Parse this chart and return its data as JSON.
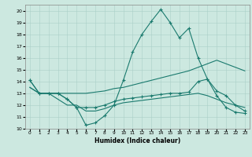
{
  "title": "",
  "xlabel": "Humidex (Indice chaleur)",
  "bg_color": "#cce8e0",
  "line_color": "#1a7a6e",
  "grid_color": "#aacfc8",
  "xlim": [
    -0.5,
    23.5
  ],
  "ylim": [
    10,
    20.5
  ],
  "xticks": [
    0,
    1,
    2,
    3,
    4,
    5,
    6,
    7,
    8,
    9,
    10,
    11,
    12,
    13,
    14,
    15,
    16,
    17,
    18,
    19,
    20,
    21,
    22,
    23
  ],
  "yticks": [
    10,
    11,
    12,
    13,
    14,
    15,
    16,
    17,
    18,
    19,
    20
  ],
  "line1_x": [
    0,
    1,
    2,
    3,
    4,
    5,
    6,
    7,
    8,
    9,
    10,
    11,
    12,
    13,
    14,
    15,
    16,
    17,
    18,
    19,
    20,
    21,
    22,
    23
  ],
  "line1_y": [
    14.1,
    13.0,
    13.0,
    13.0,
    12.5,
    11.8,
    10.3,
    10.5,
    11.1,
    12.0,
    14.1,
    16.5,
    18.0,
    19.1,
    20.1,
    19.0,
    17.7,
    18.5,
    16.0,
    14.2,
    12.8,
    11.8,
    11.4,
    11.3
  ],
  "line2_x": [
    0,
    1,
    2,
    3,
    4,
    5,
    6,
    7,
    8,
    9,
    10,
    11,
    12,
    13,
    14,
    15,
    16,
    17,
    18,
    19,
    20,
    21,
    22,
    23
  ],
  "line2_y": [
    13.5,
    13.0,
    13.0,
    13.0,
    13.0,
    13.0,
    13.0,
    13.1,
    13.2,
    13.4,
    13.5,
    13.7,
    13.9,
    14.1,
    14.3,
    14.5,
    14.7,
    14.9,
    15.2,
    15.5,
    15.8,
    15.5,
    15.2,
    14.9
  ],
  "line3_x": [
    0,
    1,
    2,
    3,
    4,
    5,
    6,
    7,
    8,
    9,
    10,
    11,
    12,
    13,
    14,
    15,
    16,
    17,
    18,
    19,
    20,
    21,
    22,
    23
  ],
  "line3_y": [
    13.5,
    13.0,
    13.0,
    12.5,
    12.0,
    12.0,
    11.5,
    11.5,
    11.7,
    12.0,
    12.2,
    12.3,
    12.4,
    12.5,
    12.6,
    12.7,
    12.8,
    12.9,
    13.0,
    12.8,
    12.5,
    12.2,
    12.0,
    11.8
  ],
  "line4_x": [
    0,
    1,
    2,
    3,
    4,
    5,
    6,
    7,
    8,
    9,
    10,
    11,
    12,
    13,
    14,
    15,
    16,
    17,
    18,
    19,
    20,
    21,
    22,
    23
  ],
  "line4_y": [
    14.1,
    13.0,
    13.0,
    13.0,
    12.5,
    11.8,
    11.8,
    11.8,
    12.0,
    12.3,
    12.5,
    12.6,
    12.7,
    12.8,
    12.9,
    13.0,
    13.0,
    13.1,
    14.0,
    14.2,
    13.2,
    12.8,
    12.0,
    11.5
  ]
}
